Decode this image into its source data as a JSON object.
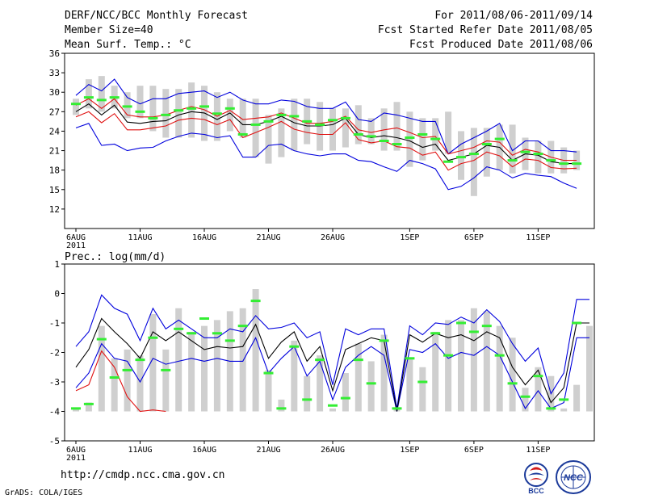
{
  "header": {
    "title": "DERF/NCC/BCC Monthly Forecast",
    "member_size": "Member Size=40",
    "variable": "Mean Surf. Temp.: °C",
    "period": "For 2011/08/06-2011/09/14",
    "start_date": "Fcst Started Refer Date 2011/08/05",
    "produced_date": "Fcst Produced Date 2011/08/06"
  },
  "footer": {
    "url": "http://cmdp.ncc.cma.gov.cn",
    "credit": "GrADS: COLA/IGES",
    "logo_bcc": "BCC",
    "logo_ncc": "NCC"
  },
  "colors": {
    "box": "#cfcfcf",
    "mean": "#000000",
    "inner": "#e01010",
    "outer": "#0000dd",
    "mark": "#33ee33"
  },
  "chart_data": [
    {
      "type": "box-line",
      "title": "Mean Surf. Temp.: °C",
      "ylim": [
        9,
        36
      ],
      "yticks": [
        12,
        15,
        18,
        21,
        24,
        27,
        30,
        33,
        36
      ],
      "xlim": [
        0,
        39
      ],
      "xticks": [
        {
          "day": 0,
          "label": "6AUG",
          "year": "2011"
        },
        {
          "day": 5,
          "label": "11AUG"
        },
        {
          "day": 10,
          "label": "16AUG"
        },
        {
          "day": 15,
          "label": "21AUG"
        },
        {
          "day": 20,
          "label": "26AUG"
        },
        {
          "day": 26,
          "label": "1SEP"
        },
        {
          "day": 31,
          "label": "6SEP"
        },
        {
          "day": 36,
          "label": "11SEP"
        }
      ],
      "box_low": [
        26.5,
        27.5,
        27,
        27.5,
        26,
        26,
        24,
        23,
        23,
        23,
        22.5,
        22.5,
        24,
        23,
        20,
        19,
        20,
        21,
        22,
        21,
        21,
        21.5,
        22,
        22,
        21,
        21,
        18.5,
        19.5,
        21,
        20.5,
        16.5,
        14,
        17,
        18,
        17.5,
        18,
        17.5,
        17.5,
        17.5,
        18
      ],
      "box_high": [
        29,
        32,
        32.5,
        31,
        30,
        31,
        31,
        30.5,
        30.5,
        31.5,
        31,
        30,
        29,
        29,
        29,
        26.5,
        27.5,
        29,
        29,
        28.5,
        27.5,
        27.5,
        28,
        26,
        27.5,
        28.5,
        27,
        26,
        26,
        27,
        24,
        24.5,
        24.5,
        25,
        25,
        23,
        22.5,
        22.5,
        21.5,
        21
      ],
      "mean": [
        27,
        28.2,
        26.5,
        28,
        25.4,
        25.2,
        25.5,
        25.6,
        26.5,
        27,
        26.8,
        25.8,
        26.8,
        25,
        25,
        25.5,
        26.3,
        25.3,
        24.8,
        24.8,
        25,
        26,
        23.5,
        23,
        23.3,
        23,
        22.5,
        21.5,
        22,
        19.5,
        20,
        20.5,
        21.8,
        21.5,
        19.5,
        20.5,
        20.3,
        19.3,
        19,
        19
      ],
      "inner_high": [
        28,
        29,
        27.5,
        29,
        26.5,
        26.2,
        26.2,
        26.5,
        27.2,
        27.8,
        27.3,
        26.3,
        27.2,
        25.8,
        26,
        26.2,
        26.8,
        26,
        25.2,
        25.2,
        25.5,
        26.3,
        24.2,
        23.8,
        24.2,
        24.5,
        23.8,
        23,
        23.2,
        20.5,
        21,
        21.5,
        22.5,
        22.3,
        20.3,
        21.2,
        20.8,
        20,
        19.5,
        19.5
      ],
      "inner_low": [
        26.2,
        27,
        25.3,
        26.7,
        24.2,
        24.2,
        24.5,
        24.8,
        25.7,
        26,
        25.8,
        25,
        25.8,
        23,
        23.8,
        24.6,
        25.5,
        24.3,
        23.8,
        23.5,
        23.5,
        25.3,
        22.7,
        22.2,
        22.5,
        21.6,
        21.4,
        20.3,
        20.8,
        18,
        19,
        19.5,
        20.8,
        20.2,
        18.5,
        19.7,
        19.5,
        18.4,
        18.2,
        18.3
      ],
      "outer_high": [
        29.5,
        31.2,
        30.2,
        32,
        29.2,
        28.2,
        29,
        29,
        29.8,
        30,
        30.2,
        29.2,
        30,
        28.8,
        28.2,
        28.2,
        28.8,
        28.6,
        27.8,
        27.5,
        27.5,
        28.5,
        25.8,
        25.5,
        26.8,
        26.5,
        26,
        25.5,
        25.5,
        20.5,
        22,
        23,
        24,
        25.2,
        21,
        22.5,
        22.5,
        21,
        21,
        20.8
      ],
      "outer_low": [
        24.5,
        25.2,
        21.8,
        22,
        21,
        21.4,
        21.5,
        22.5,
        23.2,
        23.7,
        23.5,
        23,
        23.3,
        20,
        20,
        21.8,
        22,
        21,
        20.5,
        20.2,
        20.5,
        20.5,
        19.5,
        19.3,
        18.5,
        17.8,
        19.5,
        19,
        18.2,
        15,
        15.5,
        16.8,
        18.5,
        18,
        16.8,
        17.5,
        17.2,
        17,
        16,
        15.2
      ],
      "marks": [
        28.2,
        29.2,
        28.8,
        29.2,
        27.8,
        27,
        26,
        26.5,
        27.2,
        27.5,
        27.8,
        26.7,
        27.5,
        23.5,
        25,
        25.5,
        26.5,
        26.3,
        25.5,
        25,
        25.7,
        26,
        23.5,
        23.2,
        22.5,
        22,
        23,
        23.5,
        22.8,
        19.3,
        20,
        20.5,
        22,
        22.8,
        19.5,
        20.8,
        20.5,
        19.5,
        19,
        19
      ]
    },
    {
      "type": "box-line",
      "title": "Prec.: log(mm/d)",
      "ylim": [
        -5,
        1
      ],
      "yticks": [
        -5,
        -4,
        -3,
        -2,
        -1,
        0,
        1
      ],
      "xlim": [
        0,
        39
      ],
      "xticks": [
        {
          "day": 0,
          "label": "6AUG",
          "year": "2011"
        },
        {
          "day": 5,
          "label": "11AUG"
        },
        {
          "day": 10,
          "label": "16AUG"
        },
        {
          "day": 15,
          "label": "21AUG"
        },
        {
          "day": 20,
          "label": "26AUG"
        },
        {
          "day": 26,
          "label": "1SEP"
        },
        {
          "day": 31,
          "label": "6SEP"
        },
        {
          "day": 36,
          "label": "11SEP"
        }
      ],
      "bar_top": [
        -3.9,
        -3.7,
        -1.1,
        -2.2,
        -1.9,
        -2.1,
        -0.7,
        -1.9,
        -0.5,
        -1.3,
        -1.1,
        -0.9,
        -0.6,
        -0.5,
        0.15,
        -2.6,
        -3.6,
        -1.6,
        -2.8,
        -2.1,
        -3.9,
        -2.7,
        -1.7,
        -2.3,
        -1.4,
        -3.9,
        -2.2,
        -2.5,
        -1.3,
        -0.9,
        -0.9,
        -0.5,
        -0.6,
        -1.1,
        -1.5,
        -3.2,
        -2.5,
        -2.8,
        -3.9,
        -3.1,
        -1.1
      ],
      "mean": [
        -2.5,
        -1.9,
        -0.85,
        -1.3,
        -1.7,
        -2.2,
        -1.3,
        -1.6,
        -1.3,
        -1.6,
        -1.9,
        -1.8,
        -1.85,
        -1.8,
        -1.05,
        -2.2,
        -1.65,
        -1.3,
        -2.3,
        -1.8,
        -3.3,
        -1.9,
        -1.7,
        -1.5,
        -1.6,
        -4,
        -1.4,
        -1.65,
        -1.35,
        -1.5,
        -1.4,
        -1.6,
        -1.3,
        -1.5,
        -2.5,
        -3.1,
        -2.6,
        -3.7,
        -3.2,
        -1,
        -1
      ],
      "outer_high": [
        -1.8,
        -1.3,
        -0.05,
        -0.5,
        -0.7,
        -1.6,
        -0.5,
        -1.2,
        -0.9,
        -1.2,
        -1.5,
        -1.5,
        -1.2,
        -1.3,
        -0.75,
        -1.2,
        -1.15,
        -1,
        -1.5,
        -1.3,
        -3.1,
        -1.2,
        -1.4,
        -1.2,
        -1.2,
        -3.9,
        -1.1,
        -1.4,
        -1,
        -1.05,
        -0.8,
        -1,
        -0.55,
        -0.95,
        -1.7,
        -2.3,
        -1.85,
        -3.4,
        -2.7,
        -0.2,
        -0.2
      ],
      "outer_low": [
        -3.2,
        -2.7,
        -1.7,
        -2.2,
        -2.3,
        -3,
        -2.2,
        -2.4,
        -2.3,
        -2.2,
        -2.3,
        -2.2,
        -2.3,
        -2.3,
        -1.5,
        -2.7,
        -2.2,
        -1.8,
        -2.8,
        -2.3,
        -3.6,
        -2.5,
        -2.1,
        -1.8,
        -2.1,
        -4,
        -1.9,
        -2,
        -1.7,
        -2.2,
        -2,
        -2.1,
        -1.8,
        -2.1,
        -3,
        -3.9,
        -3.3,
        -3.9,
        -3.7,
        -1.5,
        -1.5
      ],
      "inner_line": [
        -3.3,
        -3.1,
        -1.95,
        -2.5,
        -3.5,
        -4,
        -3.95,
        -4
      ],
      "marks": [
        -3.9,
        -3.75,
        -1.55,
        -2.85,
        -2.6,
        -2.25,
        -1.5,
        -2.6,
        -1.2,
        -1.35,
        -0.85,
        -1.35,
        -1.6,
        -1.1,
        -0.25,
        -2.7,
        -3.9,
        -1.8,
        -3.6,
        -2.25,
        -3.8,
        -3.55,
        -2.25,
        -3.05,
        -1.6,
        -3.9,
        -2.2,
        -3,
        -1.35,
        -2.1,
        -1,
        -1.3,
        -1.1,
        -2.1,
        -3.05,
        -3.5,
        -2.8,
        -3.9,
        -3.6,
        -1
      ]
    }
  ]
}
